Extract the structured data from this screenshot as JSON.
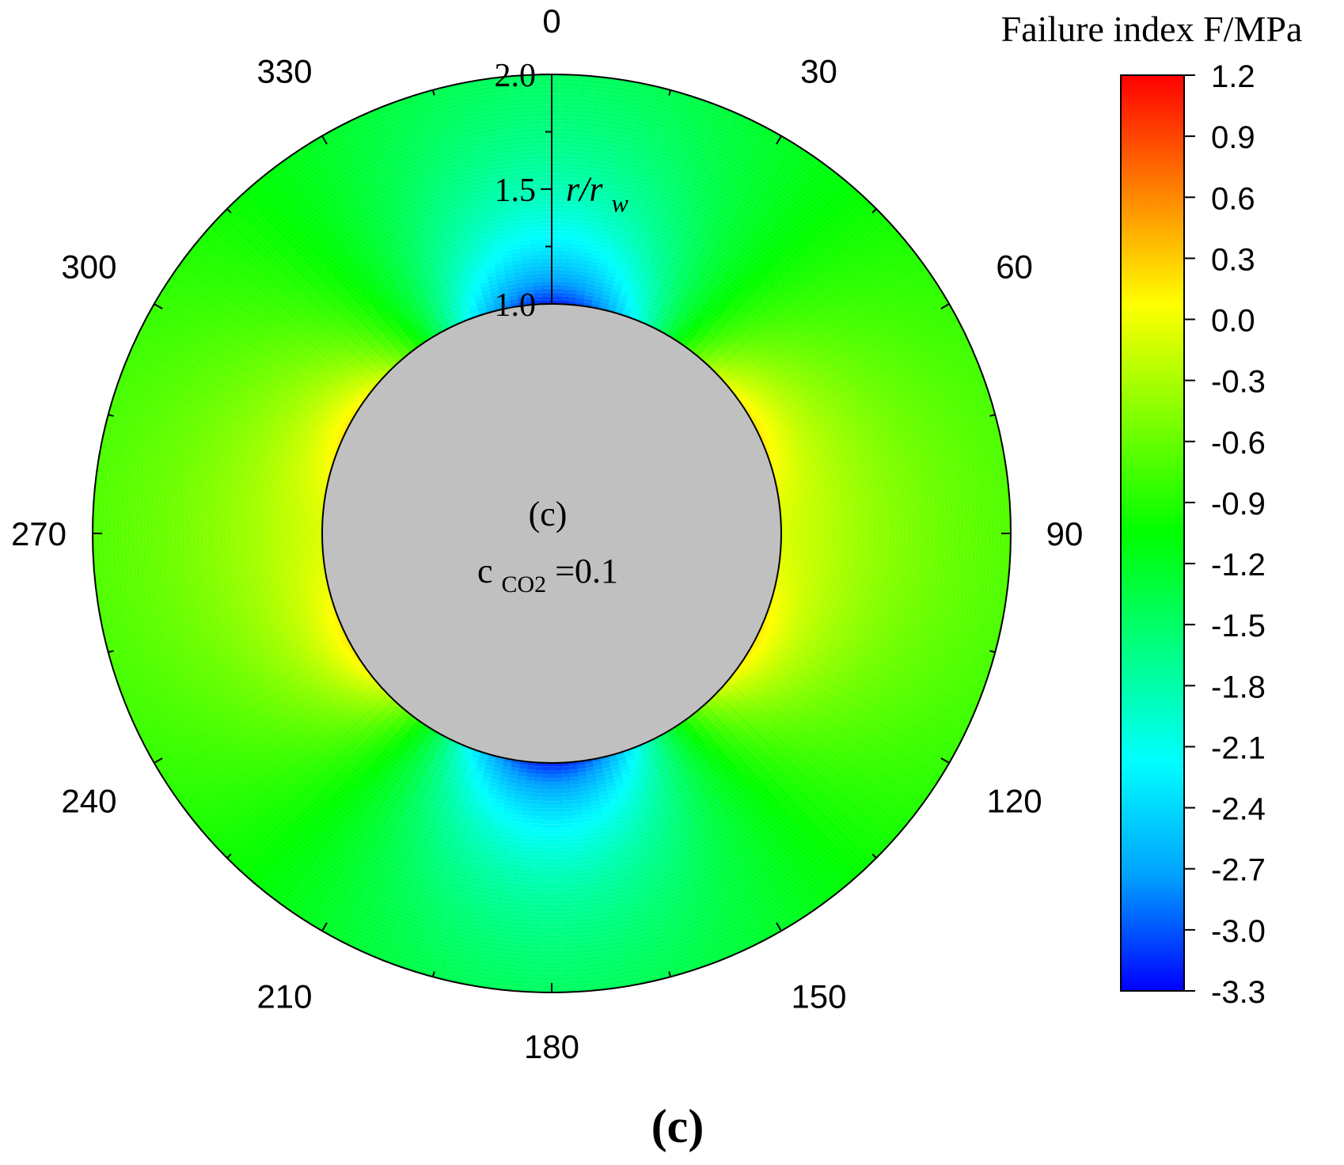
{
  "chart_data": {
    "type": "heatmap",
    "subtype": "polar-contour",
    "angle_ticks": [
      "0",
      "30",
      "60",
      "90",
      "120",
      "150",
      "180",
      "210",
      "240",
      "270",
      "300",
      "330"
    ],
    "angle_direction": "clockwise",
    "angle_zero_at": "top",
    "radial_axis": {
      "label_main": "r/r",
      "label_sub": "w",
      "range": [
        1.0,
        2.0
      ],
      "ticks": [
        "1.0",
        "1.5",
        "2.0"
      ]
    },
    "colorbar": {
      "title": "Failure index F/MPa",
      "range": [
        -3.3,
        1.2
      ],
      "ticks": [
        "1.2",
        "0.9",
        "0.6",
        "0.3",
        "0.0",
        "-0.3",
        "-0.6",
        "-0.9",
        "-1.2",
        "-1.5",
        "-1.8",
        "-2.1",
        "-2.4",
        "-2.7",
        "-3.0",
        "-3.3"
      ],
      "colormap": [
        "#0000ff",
        "#00a0ff",
        "#00ffff",
        "#00ff80",
        "#00ff00",
        "#80ff00",
        "#ffff00",
        "#ff8000",
        "#ff0000"
      ]
    },
    "field_summary": {
      "min": -3.3,
      "max": 1.2,
      "min_location": "wall at 0 and 180",
      "max_location": "wall at 90 and 270"
    },
    "inner_label": "(c)",
    "condition": {
      "base": "c",
      "sub": "CO2",
      "value": "=0.1"
    },
    "grid": false
  },
  "caption": "(c)"
}
